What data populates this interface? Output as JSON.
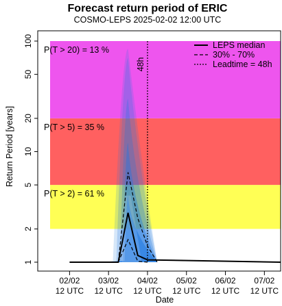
{
  "chart_data": {
    "type": "line",
    "title": "Forecast return period of ERIC",
    "subtitle": "COSMO-LEPS 2025-02-02 12:00 UTC",
    "xlabel": "Date",
    "ylabel": "Return Period [years]",
    "y_scale": "log",
    "ylim": [
      1,
      100
    ],
    "xlim": [
      "2025-02-02 00:00",
      "2025-02-07 22:00"
    ],
    "y_ticks": [
      1,
      2,
      5,
      10,
      20,
      50,
      100
    ],
    "y_tick_labels": [
      "1",
      "2",
      "5",
      "10",
      "20",
      "50",
      "100"
    ],
    "x_ticks": [
      "2025-02-02 12:00",
      "2025-02-03 12:00",
      "2025-02-04 12:00",
      "2025-02-05 12:00",
      "2025-02-06 12:00",
      "2025-02-07 12:00"
    ],
    "x_tick_labels_top": [
      "02/02",
      "03/02",
      "04/02",
      "05/02",
      "06/02",
      "07/02"
    ],
    "x_tick_labels_bottom": [
      "12 UTC",
      "12 UTC",
      "12 UTC",
      "12 UTC",
      "12 UTC",
      "12 UTC"
    ],
    "return_period_bands": [
      {
        "from": 2,
        "to": 5,
        "color": "#ffff55",
        "label": "P(T > 2) = 61 %"
      },
      {
        "from": 5,
        "to": 20,
        "color": "#ff6060",
        "label": "P(T > 5) = 35 %"
      },
      {
        "from": 20,
        "to": 100,
        "color": "#ee55ee",
        "label": "P(T > 20) = 13 %"
      }
    ],
    "series": [
      {
        "name": "LEPS median",
        "style": "solid",
        "x": [
          "2025-02-02 12:00",
          "2025-02-03 12:00",
          "2025-02-03 18:00",
          "2025-02-04 00:00",
          "2025-02-04 06:00",
          "2025-02-04 12:00",
          "2025-02-07 22:00"
        ],
        "y": [
          1,
          1,
          1,
          2.8,
          1.15,
          1.05,
          1
        ]
      },
      {
        "name": "30% - 70%",
        "style": "dashed",
        "x": [
          "2025-02-03 12:00",
          "2025-02-03 18:00",
          "2025-02-04 00:00",
          "2025-02-04 06:00",
          "2025-02-04 12:00",
          "2025-02-04 18:00"
        ],
        "y": [
          1,
          1,
          6.5,
          2.5,
          1.4,
          1
        ]
      },
      {
        "name": "30% - 70%",
        "style": "dashed",
        "x": [
          "2025-02-03 18:00",
          "2025-02-04 00:00",
          "2025-02-04 06:00",
          "2025-02-04 12:00"
        ],
        "y": [
          1,
          1.6,
          1.02,
          1
        ]
      }
    ],
    "leadtime_line": {
      "label": "Leadtime = 48h",
      "marker_text": "48h",
      "x": "2025-02-04 12:00"
    },
    "ensemble_spread_color": "#1e78e0",
    "legend": {
      "position": "top-right",
      "entries": [
        "LEPS median",
        "30% - 70%",
        "Leadtime = 48h"
      ]
    }
  }
}
